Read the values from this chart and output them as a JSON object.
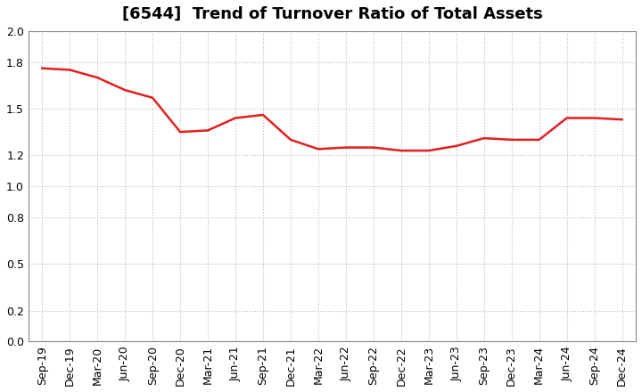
{
  "title": "[6544]  Trend of Turnover Ratio of Total Assets",
  "x_labels": [
    "Sep-19",
    "Dec-19",
    "Mar-20",
    "Jun-20",
    "Sep-20",
    "Dec-20",
    "Mar-21",
    "Jun-21",
    "Sep-21",
    "Dec-21",
    "Mar-22",
    "Jun-22",
    "Sep-22",
    "Dec-22",
    "Mar-23",
    "Jun-23",
    "Sep-23",
    "Dec-23",
    "Mar-24",
    "Jun-24",
    "Sep-24",
    "Dec-24"
  ],
  "values": [
    1.76,
    1.75,
    1.7,
    1.62,
    1.57,
    1.35,
    1.36,
    1.44,
    1.46,
    1.3,
    1.24,
    1.25,
    1.25,
    1.23,
    1.23,
    1.26,
    1.31,
    1.3,
    1.3,
    1.44,
    1.44,
    1.43
  ],
  "line_color": "#e02020",
  "line_width": 1.8,
  "ylim": [
    0.0,
    2.0
  ],
  "yticks": [
    0.0,
    0.2,
    0.5,
    0.8,
    1.0,
    1.2,
    1.5,
    1.8,
    2.0
  ],
  "background_color": "#ffffff",
  "grid_color": "#bbbbbb",
  "title_fontsize": 13,
  "tick_fontsize": 9
}
